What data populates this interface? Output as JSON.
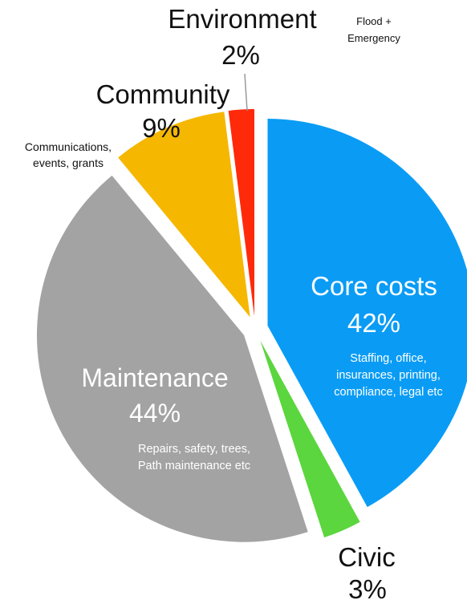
{
  "chart_data": {
    "type": "pie",
    "slices": [
      {
        "label": "Core costs",
        "value": 42,
        "percent": "42%",
        "description": [
          "Staffing, office,",
          "insurances, printing,",
          "compliance, legal etc"
        ],
        "color": "#0A9CF5"
      },
      {
        "label": "Civic",
        "value": 3,
        "percent": "3%",
        "description": [],
        "color": "#5BD63E"
      },
      {
        "label": "Maintenance",
        "value": 44,
        "percent": "44%",
        "description": [
          "Repairs, safety, trees,",
          "Path maintenance etc"
        ],
        "color": "#A3A3A3"
      },
      {
        "label": "Community",
        "value": 9,
        "percent": "9%",
        "description": [
          "Communications,",
          "events, grants"
        ],
        "color": "#F5B700"
      },
      {
        "label": "Environment",
        "value": 2,
        "percent": "2%",
        "description": [
          "Flood +",
          "Emergency"
        ],
        "color": "#FF2A0A"
      }
    ]
  }
}
